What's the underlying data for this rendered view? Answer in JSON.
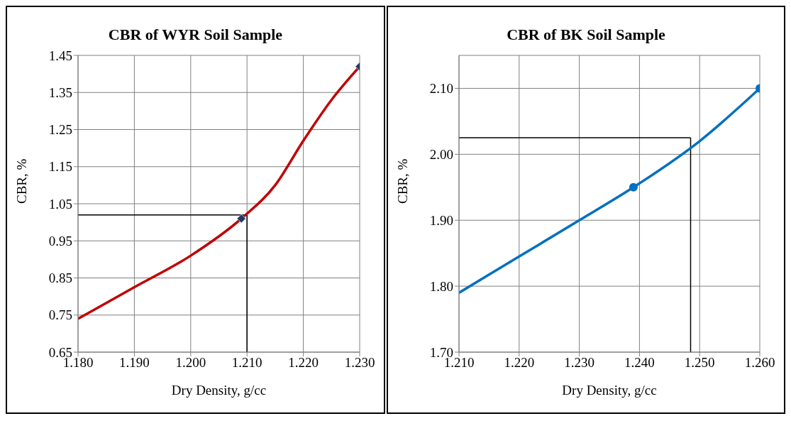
{
  "chart_data": [
    {
      "type": "line",
      "title": "CBR of WYR  Soil Sample",
      "xlabel": "Dry Density, g/cc",
      "ylabel": "CBR, %",
      "xlim": [
        1.18,
        1.23
      ],
      "ylim": [
        0.65,
        1.45
      ],
      "xticks": [
        {
          "value": 1.18,
          "label": "1.180"
        },
        {
          "value": 1.19,
          "label": "1.190"
        },
        {
          "value": 1.2,
          "label": "1.200"
        },
        {
          "value": 1.21,
          "label": "1.210"
        },
        {
          "value": 1.22,
          "label": "1.220"
        },
        {
          "value": 1.23,
          "label": "1.230"
        }
      ],
      "yticks": [
        0.65,
        0.75,
        0.85,
        0.95,
        1.05,
        1.15,
        1.25,
        1.35,
        1.45
      ],
      "grid": true,
      "series": [
        {
          "color": "#c00000",
          "marker": "none",
          "x": [
            1.18,
            1.19,
            1.2,
            1.209,
            1.215,
            1.22,
            1.225,
            1.23
          ],
          "values": [
            0.74,
            0.825,
            0.91,
            1.01,
            1.1,
            1.22,
            1.33,
            1.42
          ]
        },
        {
          "type": "scatter",
          "color": "#1f3864",
          "marker": "diamond",
          "x": [
            1.209,
            1.23
          ],
          "values": [
            1.01,
            1.42
          ]
        }
      ],
      "ref_lines": [
        {
          "axis": "y",
          "value": 1.02,
          "color": "#000000"
        },
        {
          "axis": "x",
          "value": 1.21,
          "color": "#000000"
        }
      ]
    },
    {
      "type": "line",
      "title": "CBR of BK Soil Sample",
      "xlabel": "Dry Density, g/cc",
      "ylabel": "CBR, %",
      "xlim": [
        1.21,
        1.26
      ],
      "ylim": [
        1.7,
        2.15
      ],
      "xticks": [
        {
          "value": 1.21,
          "label": "1.210"
        },
        {
          "value": 1.22,
          "label": "1.220"
        },
        {
          "value": 1.23,
          "label": "1.230"
        },
        {
          "value": 1.24,
          "label": "1.240"
        },
        {
          "value": 1.25,
          "label": "1.250"
        },
        {
          "value": 1.26,
          "label": "1.260"
        }
      ],
      "yticks": [
        {
          "value": 1.7,
          "label": "1.70"
        },
        {
          "value": 1.8,
          "label": "1.80"
        },
        {
          "value": 1.9,
          "label": "1.90"
        },
        {
          "value": 2.0,
          "label": "2.00"
        },
        {
          "value": 2.1,
          "label": "2.10"
        }
      ],
      "grid": true,
      "series": [
        {
          "color": "#0070c0",
          "marker": "none",
          "x": [
            1.21,
            1.22,
            1.23,
            1.239,
            1.25,
            1.26
          ],
          "values": [
            1.79,
            1.845,
            1.9,
            1.95,
            2.02,
            2.1
          ]
        },
        {
          "type": "scatter",
          "color": "#0070c0",
          "marker": "circle",
          "x": [
            1.239,
            1.26
          ],
          "values": [
            1.95,
            2.1
          ]
        }
      ],
      "ref_lines": [
        {
          "axis": "y",
          "value": 2.025,
          "color": "#000000"
        },
        {
          "axis": "x",
          "value": 1.2485,
          "color": "#000000"
        }
      ]
    }
  ]
}
